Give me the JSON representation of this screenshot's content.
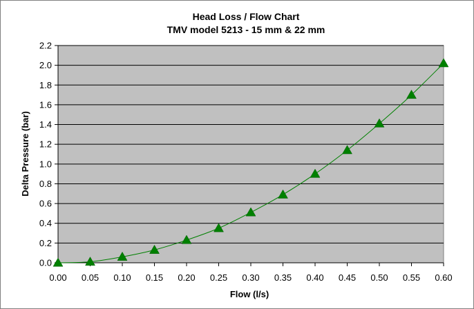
{
  "chart_data": {
    "type": "scatter",
    "title": "Head Loss / Flow Chart",
    "subtitle": "TMV model 5213 - 15 mm & 22 mm",
    "xlabel": "Flow  (l/s)",
    "ylabel": "Delta Pressure (bar)",
    "xlim": [
      0,
      0.6
    ],
    "ylim": [
      0,
      2.2
    ],
    "x_ticks": [
      "0.00",
      "0.05",
      "0.10",
      "0.15",
      "0.20",
      "0.25",
      "0.30",
      "0.35",
      "0.40",
      "0.45",
      "0.50",
      "0.55",
      "0.60"
    ],
    "y_ticks": [
      "0.0",
      "0.2",
      "0.4",
      "0.6",
      "0.8",
      "1.0",
      "1.2",
      "1.4",
      "1.6",
      "1.8",
      "2.0",
      "2.2"
    ],
    "grid": "horizontal",
    "plot_background": "#c0c0c0",
    "series": [
      {
        "color": "#008000",
        "marker": "triangle",
        "trendline": true,
        "x": [
          0.0,
          0.05,
          0.1,
          0.15,
          0.2,
          0.25,
          0.3,
          0.35,
          0.4,
          0.45,
          0.5,
          0.55,
          0.6
        ],
        "y": [
          0.0,
          0.01,
          0.06,
          0.13,
          0.23,
          0.35,
          0.51,
          0.69,
          0.9,
          1.14,
          1.41,
          1.7,
          2.02
        ]
      }
    ]
  }
}
